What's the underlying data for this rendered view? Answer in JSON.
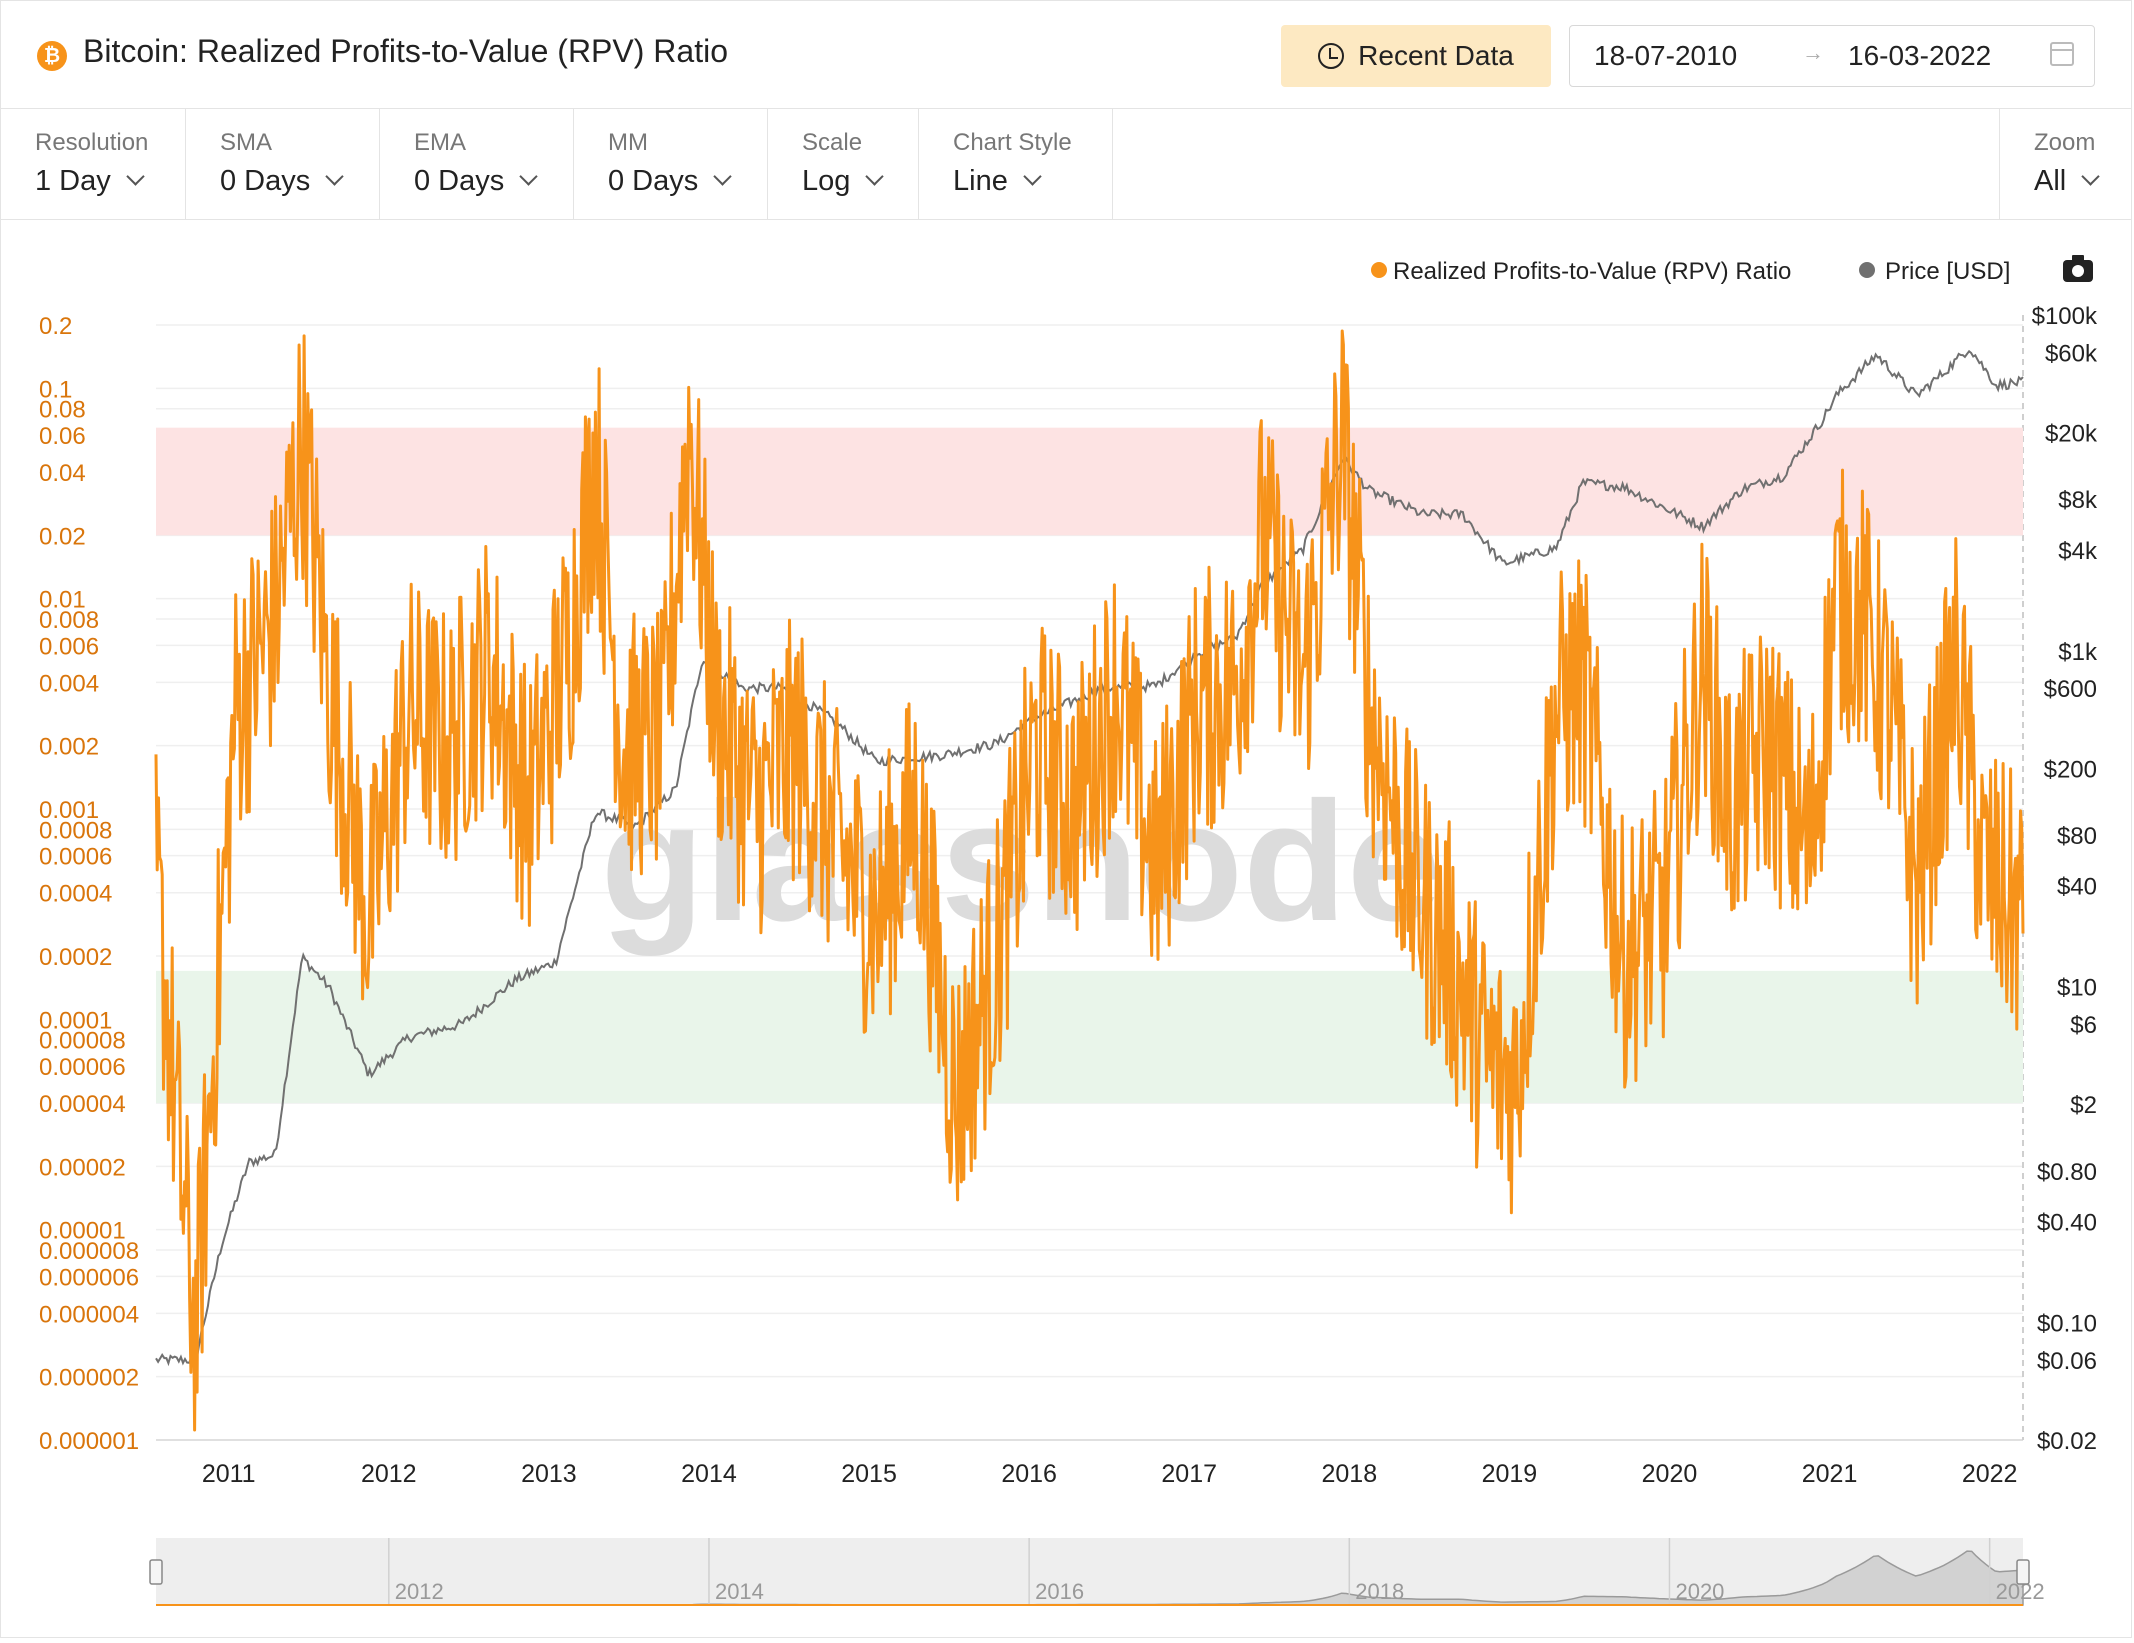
{
  "header": {
    "coin_icon": "bitcoin-icon",
    "title": "Bitcoin: Realized Profits-to-Value (RPV) Ratio",
    "recent_label": "Recent Data",
    "date_from": "18-07-2010",
    "date_arrow": "→",
    "date_to": "16-03-2022"
  },
  "controls": [
    {
      "name": "resolution",
      "label": "Resolution",
      "value": "1 Day"
    },
    {
      "name": "sma",
      "label": "SMA",
      "value": "0 Days"
    },
    {
      "name": "ema",
      "label": "EMA",
      "value": "0 Days"
    },
    {
      "name": "mm",
      "label": "MM",
      "value": "0 Days"
    },
    {
      "name": "scale",
      "label": "Scale",
      "value": "Log"
    },
    {
      "name": "chart-style",
      "label": "Chart Style",
      "value": "Line"
    },
    {
      "name": "zoom",
      "label": "Zoom",
      "value": "All"
    }
  ],
  "colors": {
    "rpv": "#f7931a",
    "price": "#707070",
    "red_band": "#fde3e3",
    "green_band": "#e9f5ea",
    "axis_left": "#d9750b"
  },
  "chart_data": {
    "type": "line",
    "title": "Bitcoin: Realized Profits-to-Value (RPV) Ratio",
    "xlabel": "",
    "ylabel": "",
    "legend_position": "top-right",
    "x_tick_labels": [
      "2011",
      "2012",
      "2013",
      "2014",
      "2015",
      "2016",
      "2017",
      "2018",
      "2019",
      "2020",
      "2021",
      "2022"
    ],
    "navigator_tick_labels": [
      "2012",
      "2014",
      "2016",
      "2018",
      "2020",
      "2022"
    ],
    "y_left": {
      "scale": "log",
      "range": [
        1e-06,
        0.2
      ],
      "tick_labels": [
        "0.2",
        "0.1",
        "0.08",
        "0.06",
        "0.04",
        "0.02",
        "0.01",
        "0.008",
        "0.006",
        "0.004",
        "0.002",
        "0.001",
        "0.0008",
        "0.0006",
        "0.0004",
        "0.0002",
        "0.0001",
        "0.00008",
        "0.00006",
        "0.00004",
        "0.00002",
        "0.00001",
        "0.000008",
        "0.000006",
        "0.000004",
        "0.000002",
        "0.000001"
      ]
    },
    "y_right": {
      "scale": "log",
      "range": [
        0.02,
        100000
      ],
      "tick_labels": [
        "$100k",
        "$60k",
        "$20k",
        "$8k",
        "$4k",
        "$1k",
        "$600",
        "$200",
        "$80",
        "$40",
        "$10",
        "$6",
        "$2",
        "$0.80",
        "$0.40",
        "$0.10",
        "$0.06",
        "$0.02"
      ]
    },
    "bands": [
      {
        "name": "red",
        "from": 0.02,
        "to": 0.065
      },
      {
        "name": "green",
        "from": 4e-05,
        "to": 0.00017
      }
    ],
    "watermark": "glassnode",
    "series": [
      {
        "name": "Realized Profits-to-Value (RPV) Ratio",
        "axis": "left",
        "x": [
          "2010-07",
          "2010-10",
          "2011-01",
          "2011-04",
          "2011-06",
          "2011-08",
          "2011-11",
          "2012-02",
          "2012-05",
          "2012-08",
          "2012-11",
          "2013-02",
          "2013-04",
          "2013-06",
          "2013-09",
          "2013-11",
          "2014-01",
          "2014-04",
          "2014-07",
          "2014-10",
          "2015-01",
          "2015-04",
          "2015-07",
          "2015-10",
          "2016-01",
          "2016-04",
          "2016-07",
          "2016-10",
          "2017-01",
          "2017-04",
          "2017-06",
          "2017-09",
          "2017-12",
          "2018-02",
          "2018-05",
          "2018-08",
          "2018-11",
          "2019-01",
          "2019-04",
          "2019-06",
          "2019-09",
          "2019-12",
          "2020-03",
          "2020-05",
          "2020-08",
          "2020-11",
          "2021-01",
          "2021-03",
          "2021-05",
          "2021-07",
          "2021-10",
          "2021-12",
          "2022-03"
        ],
        "values": [
          0.0005,
          3e-06,
          0.003,
          0.008,
          0.06,
          0.004,
          0.0003,
          0.003,
          0.002,
          0.005,
          0.001,
          0.006,
          0.05,
          0.002,
          0.002,
          0.07,
          0.003,
          0.001,
          0.002,
          0.0007,
          0.0003,
          0.001,
          4e-05,
          0.0002,
          0.002,
          0.001,
          0.004,
          0.0005,
          0.003,
          0.004,
          0.02,
          0.004,
          0.06,
          0.003,
          0.0005,
          0.0002,
          6e-05,
          5e-05,
          0.003,
          0.004,
          0.0002,
          0.0003,
          0.005,
          0.001,
          0.002,
          0.0006,
          0.01,
          0.008,
          0.003,
          0.0004,
          0.005,
          0.0005,
          0.0003
        ]
      },
      {
        "name": "Price [USD]",
        "axis": "right",
        "x": [
          "2010-07",
          "2010-10",
          "2010-12",
          "2011-02",
          "2011-04",
          "2011-06",
          "2011-08",
          "2011-11",
          "2012-02",
          "2012-06",
          "2012-10",
          "2013-01",
          "2013-04",
          "2013-07",
          "2013-10",
          "2013-12",
          "2014-03",
          "2014-06",
          "2014-10",
          "2015-01",
          "2015-06",
          "2015-10",
          "2016-01",
          "2016-06",
          "2016-10",
          "2017-01",
          "2017-04",
          "2017-06",
          "2017-09",
          "2017-12",
          "2018-02",
          "2018-06",
          "2018-09",
          "2018-12",
          "2019-04",
          "2019-06",
          "2019-09",
          "2019-12",
          "2020-03",
          "2020-06",
          "2020-09",
          "2020-12",
          "2021-01",
          "2021-04",
          "2021-07",
          "2021-09",
          "2021-11",
          "2022-01",
          "2022-03"
        ],
        "values": [
          0.06,
          0.06,
          0.3,
          0.9,
          1,
          15,
          10,
          3,
          5,
          6,
          11,
          14,
          110,
          90,
          150,
          900,
          600,
          600,
          380,
          220,
          240,
          280,
          400,
          600,
          620,
          960,
          1200,
          2500,
          4000,
          14000,
          9000,
          6500,
          6500,
          3300,
          4100,
          10000,
          9500,
          7200,
          5500,
          9200,
          11000,
          24000,
          33000,
          58000,
          33000,
          45000,
          64000,
          38000,
          40000
        ]
      }
    ]
  }
}
